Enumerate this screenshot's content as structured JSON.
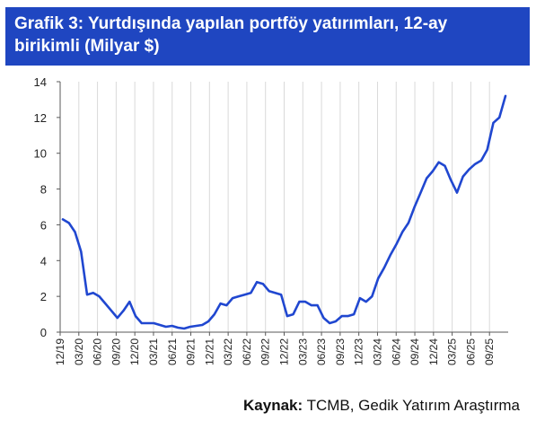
{
  "title": {
    "line1": "Grafik 3: Yurtdışında yapılan portföy yatırımları, 12-ay",
    "line2": "birikimli (Milyar $)"
  },
  "source": {
    "label": "Kaynak:",
    "text": " TCMB, Gedik Yatırım Araştırma"
  },
  "colors": {
    "header_bg": "#1f46c1",
    "line": "#2047d0",
    "grid": "#d9d9d9"
  },
  "chart_data": {
    "type": "line",
    "title": "Grafik 3: Yurtdışında yapılan portföy yatırımları, 12-ay birikimli (Milyar $)",
    "xlabel": "",
    "ylabel": "",
    "ylim": [
      0,
      14
    ],
    "yticks": [
      0,
      2,
      4,
      6,
      8,
      10,
      12,
      14
    ],
    "grid": "vertical",
    "x_tick_labels": [
      "12/19",
      "03/20",
      "06/20",
      "09/20",
      "12/20",
      "03/21",
      "06/21",
      "09/21",
      "12/21",
      "03/22",
      "06/22",
      "09/22",
      "12/22",
      "03/23",
      "06/23",
      "09/23",
      "12/23",
      "03/24",
      "06/24",
      "09/24",
      "12/24",
      "03/25",
      "06/25",
      "09/25"
    ],
    "series": [
      {
        "values": [
          6.3,
          6.1,
          5.6,
          4.5,
          2.1,
          2.2,
          2.0,
          1.6,
          1.2,
          0.8,
          1.2,
          1.7,
          0.9,
          0.5,
          0.5,
          0.5,
          0.4,
          0.3,
          0.35,
          0.25,
          0.2,
          0.3,
          0.35,
          0.4,
          0.6,
          1.0,
          1.6,
          1.5,
          1.9,
          2.0,
          2.1,
          2.2,
          2.8,
          2.7,
          2.3,
          2.2,
          2.1,
          0.9,
          1.0,
          1.7,
          1.7,
          1.5,
          1.5,
          0.8,
          0.5,
          0.6,
          0.9,
          0.9,
          1.0,
          1.9,
          1.7,
          2.0,
          3.0,
          3.6,
          4.3,
          4.9,
          5.6,
          6.1,
          7.0,
          7.8,
          8.6,
          9.0,
          9.5,
          9.3,
          8.5,
          7.8,
          8.7,
          9.1,
          9.4,
          9.6,
          10.2,
          11.7,
          12.0,
          13.2
        ]
      }
    ]
  }
}
